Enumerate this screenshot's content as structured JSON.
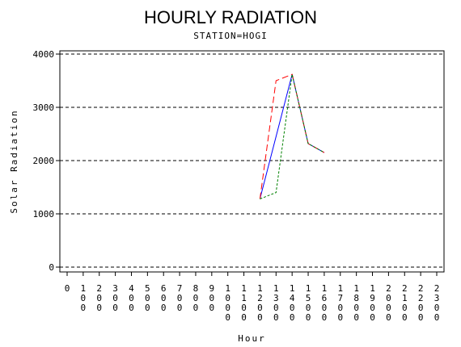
{
  "chart_data": {
    "type": "line",
    "title": "HOURLY RADIATION",
    "subtitle": "STATION=HOGI",
    "xlabel": "Hour",
    "ylabel": "Solar Radiation",
    "xlim": [
      0,
      2300
    ],
    "ylim": [
      0,
      4000
    ],
    "x_ticks": [
      0,
      100,
      200,
      300,
      400,
      500,
      600,
      700,
      800,
      900,
      1000,
      1100,
      1200,
      1300,
      1400,
      1500,
      1600,
      1700,
      1800,
      1900,
      2000,
      2100,
      2200,
      2300
    ],
    "y_ticks": [
      0,
      1000,
      2000,
      3000,
      4000
    ],
    "grid": "horizontal dashed",
    "series": [
      {
        "color": "#0000ff",
        "dash": "solid",
        "x": [
          1200,
          1400,
          1500,
          1600
        ],
        "values": [
          1280,
          3620,
          2320,
          2150
        ]
      },
      {
        "color": "#ff0000",
        "dash": "dashed",
        "x": [
          1200,
          1300,
          1400,
          1500,
          1600
        ],
        "values": [
          1280,
          3500,
          3620,
          2320,
          2150
        ]
      },
      {
        "color": "#008000",
        "dash": "dotted",
        "x": [
          1200,
          1300,
          1400,
          1500,
          1600
        ],
        "values": [
          1280,
          1400,
          3620,
          2320,
          2150
        ]
      }
    ]
  }
}
